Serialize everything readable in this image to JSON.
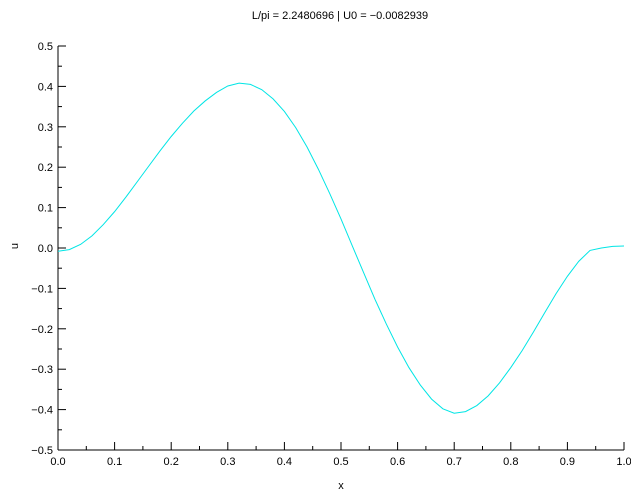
{
  "chart_data": {
    "type": "line",
    "title": "L/pi = 2.2480696 | U0 = −0.0082939",
    "xlabel": "x",
    "ylabel": "u",
    "xlim": [
      0,
      1
    ],
    "ylim": [
      -0.5,
      0.5
    ],
    "xticks": [
      "0.0",
      "0.1",
      "0.2",
      "0.3",
      "0.4",
      "0.5",
      "0.6",
      "0.7",
      "0.8",
      "0.9",
      "1.0"
    ],
    "yticks": [
      "−0.5",
      "−0.4",
      "−0.3",
      "−0.2",
      "−0.1",
      "0.0",
      "0.1",
      "0.2",
      "0.3",
      "0.4",
      "0.5"
    ],
    "grid": false,
    "legend": "none",
    "series": [
      {
        "color": "#00e5e5",
        "x": [
          0.0,
          0.02,
          0.04,
          0.06,
          0.08,
          0.1,
          0.12,
          0.14,
          0.16,
          0.18,
          0.2,
          0.22,
          0.24,
          0.26,
          0.28,
          0.3,
          0.32,
          0.34,
          0.36,
          0.38,
          0.4,
          0.42,
          0.44,
          0.46,
          0.48,
          0.5,
          0.52,
          0.54,
          0.56,
          0.58,
          0.6,
          0.62,
          0.64,
          0.66,
          0.68,
          0.7,
          0.72,
          0.74,
          0.76,
          0.78,
          0.8,
          0.82,
          0.84,
          0.86,
          0.88,
          0.9,
          0.92,
          0.94,
          0.96,
          0.98,
          1.0
        ],
        "y": [
          -0.008,
          -0.004,
          0.009,
          0.03,
          0.058,
          0.09,
          0.126,
          0.164,
          0.202,
          0.24,
          0.276,
          0.309,
          0.339,
          0.364,
          0.385,
          0.401,
          0.408,
          0.405,
          0.392,
          0.369,
          0.338,
          0.298,
          0.25,
          0.195,
          0.135,
          0.072,
          0.005,
          -0.061,
          -0.127,
          -0.188,
          -0.245,
          -0.296,
          -0.339,
          -0.374,
          -0.398,
          -0.409,
          -0.405,
          -0.39,
          -0.366,
          -0.334,
          -0.296,
          -0.254,
          -0.208,
          -0.16,
          -0.113,
          -0.07,
          -0.033,
          -0.006,
          0.0,
          0.004,
          0.005
        ]
      }
    ]
  }
}
